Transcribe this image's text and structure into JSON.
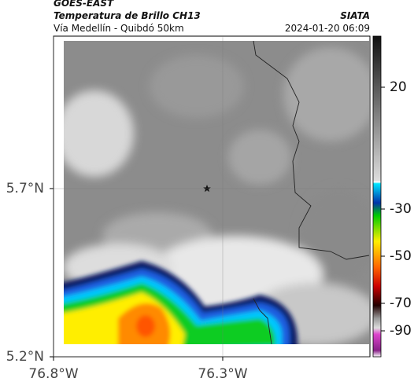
{
  "header": {
    "source": "GOES-EAST",
    "title": "Temperatura de Brillo CH13",
    "agency": "SIATA",
    "subtitle": "Vía Medellín - Quibdó 50km",
    "datetime": "2024-01-20 06:09"
  },
  "map": {
    "xlim": [
      -76.8,
      -75.865
    ],
    "ylim": [
      5.2,
      6.153
    ],
    "lat_ticks": [
      {
        "value": 5.7,
        "label": "5.7°N"
      },
      {
        "value": 5.2,
        "label": "5.2°N"
      }
    ],
    "lon_ticks": [
      {
        "value": -76.8,
        "label": "76.8°W"
      },
      {
        "value": -76.3,
        "label": "76.3°W"
      }
    ]
  },
  "colorbar": {
    "ticks": [
      20,
      -30,
      -50,
      -70,
      -90
    ]
  }
}
